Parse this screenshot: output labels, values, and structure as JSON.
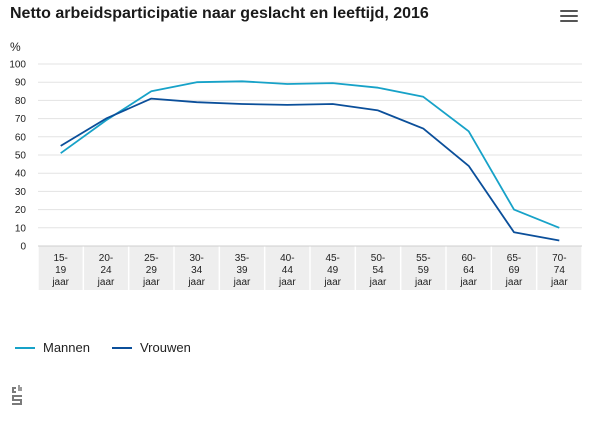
{
  "header": {
    "title": "Netto arbeidsparticipatie naar geslacht en leeftijd, 2016"
  },
  "icons": {
    "menu": "hamburger-menu-icon",
    "logo": "cbs-logo-icon"
  },
  "colors": {
    "mannen": "#17a2c8",
    "vrouwen": "#0b4f9a",
    "grid": "#e3e3e3",
    "band": "#eeeeee"
  },
  "chart_data": {
    "type": "line",
    "title": "Netto arbeidsparticipatie naar geslacht en leeftijd, 2016",
    "ylabel": "%",
    "xlabel": "",
    "ylim": [
      0,
      100
    ],
    "yticks": [
      0,
      10,
      20,
      30,
      40,
      50,
      60,
      70,
      80,
      90,
      100
    ],
    "grid": true,
    "legend_position": "bottom-left",
    "categories": [
      [
        "15-",
        "19",
        "jaar"
      ],
      [
        "20-",
        "24",
        "jaar"
      ],
      [
        "25-",
        "29",
        "jaar"
      ],
      [
        "30-",
        "34",
        "jaar"
      ],
      [
        "35-",
        "39",
        "jaar"
      ],
      [
        "40-",
        "44",
        "jaar"
      ],
      [
        "45-",
        "49",
        "jaar"
      ],
      [
        "50-",
        "54",
        "jaar"
      ],
      [
        "55-",
        "59",
        "jaar"
      ],
      [
        "60-",
        "64",
        "jaar"
      ],
      [
        "65-",
        "69",
        "jaar"
      ],
      [
        "70-",
        "74",
        "jaar"
      ]
    ],
    "series": [
      {
        "name": "Mannen",
        "color": "#17a2c8",
        "values": [
          51,
          69,
          85,
          90,
          90.5,
          89,
          89.5,
          87,
          82,
          63,
          20,
          10
        ]
      },
      {
        "name": "Vrouwen",
        "color": "#0b4f9a",
        "values": [
          55,
          70,
          81,
          79,
          78,
          77.5,
          78,
          74.5,
          64.5,
          44,
          7.5,
          3
        ]
      }
    ]
  }
}
